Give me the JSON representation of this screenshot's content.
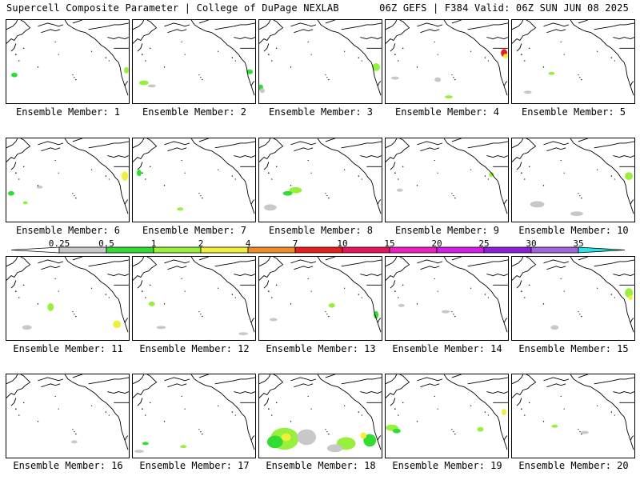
{
  "header": {
    "title": "Supercell Composite Parameter | College of DuPage NEXLAB",
    "run_info": "06Z GEFS | F384 Valid: 06Z SUN JUN 08 2025"
  },
  "colorbar": {
    "labels": [
      "0.25",
      "0.5",
      "1",
      "2",
      "4",
      "7",
      "10",
      "15",
      "20",
      "25",
      "30",
      "35"
    ],
    "colors": [
      "#c8c8c8",
      "#32dc32",
      "#96f03c",
      "#f0f03c",
      "#f08c28",
      "#e61e1e",
      "#e6145a",
      "#f01ebe",
      "#d21eeb",
      "#8c1edc",
      "#a064dc",
      "#28e6e6"
    ]
  },
  "members": [
    {
      "label": "Ensemble Member: 1"
    },
    {
      "label": "Ensemble Member: 2"
    },
    {
      "label": "Ensemble Member: 3"
    },
    {
      "label": "Ensemble Member: 4"
    },
    {
      "label": "Ensemble Member: 5"
    },
    {
      "label": "Ensemble Member: 6"
    },
    {
      "label": "Ensemble Member: 7"
    },
    {
      "label": "Ensemble Member: 8"
    },
    {
      "label": "Ensemble Member: 9"
    },
    {
      "label": "Ensemble Member: 10"
    },
    {
      "label": "Ensemble Member: 11"
    },
    {
      "label": "Ensemble Member: 12"
    },
    {
      "label": "Ensemble Member: 13"
    },
    {
      "label": "Ensemble Member: 14"
    },
    {
      "label": "Ensemble Member: 15"
    },
    {
      "label": "Ensemble Member: 16"
    },
    {
      "label": "Ensemble Member: 17"
    },
    {
      "label": "Ensemble Member: 18"
    },
    {
      "label": "Ensemble Member: 19"
    },
    {
      "label": "Ensemble Member: 20"
    }
  ]
}
